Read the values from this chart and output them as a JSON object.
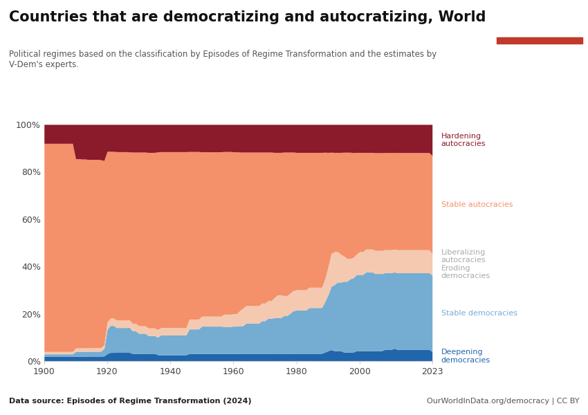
{
  "title": "Countries that are democratizing and autocratizing, World",
  "subtitle": "Political regimes based on the classification by Episodes of Regime Transformation and the estimates by\nV-Dem's experts.",
  "datasource": "Data source: Episodes of Regime Transformation (2024)",
  "website": "OurWorldInData.org/democracy | CC BY",
  "years": [
    1900,
    1901,
    1902,
    1903,
    1904,
    1905,
    1906,
    1907,
    1908,
    1909,
    1910,
    1911,
    1912,
    1913,
    1914,
    1915,
    1916,
    1917,
    1918,
    1919,
    1920,
    1921,
    1922,
    1923,
    1924,
    1925,
    1926,
    1927,
    1928,
    1929,
    1930,
    1931,
    1932,
    1933,
    1934,
    1935,
    1936,
    1937,
    1938,
    1939,
    1940,
    1941,
    1942,
    1943,
    1944,
    1945,
    1946,
    1947,
    1948,
    1949,
    1950,
    1951,
    1952,
    1953,
    1954,
    1955,
    1956,
    1957,
    1958,
    1959,
    1960,
    1961,
    1962,
    1963,
    1964,
    1965,
    1966,
    1967,
    1968,
    1969,
    1970,
    1971,
    1972,
    1973,
    1974,
    1975,
    1976,
    1977,
    1978,
    1979,
    1980,
    1981,
    1982,
    1983,
    1984,
    1985,
    1986,
    1987,
    1988,
    1989,
    1990,
    1991,
    1992,
    1993,
    1994,
    1995,
    1996,
    1997,
    1998,
    1999,
    2000,
    2001,
    2002,
    2003,
    2004,
    2005,
    2006,
    2007,
    2008,
    2009,
    2010,
    2011,
    2012,
    2013,
    2014,
    2015,
    2016,
    2017,
    2018,
    2019,
    2020,
    2021,
    2022,
    2023
  ],
  "pct_deepening": [
    2.0,
    2.0,
    2.0,
    2.0,
    2.0,
    2.0,
    2.0,
    2.0,
    2.0,
    2.0,
    2.0,
    2.0,
    2.0,
    2.0,
    2.0,
    2.0,
    2.0,
    2.0,
    2.0,
    2.0,
    3.0,
    3.5,
    3.5,
    3.5,
    3.5,
    3.5,
    3.5,
    3.5,
    3.0,
    3.0,
    3.0,
    3.0,
    3.0,
    3.0,
    3.0,
    3.0,
    2.5,
    2.5,
    2.5,
    2.5,
    2.5,
    2.5,
    2.5,
    2.5,
    2.5,
    2.5,
    3.0,
    3.0,
    3.0,
    3.0,
    3.0,
    3.0,
    3.0,
    3.0,
    3.0,
    3.0,
    3.0,
    3.0,
    3.0,
    3.0,
    3.0,
    3.0,
    3.0,
    3.0,
    3.0,
    3.0,
    3.0,
    3.0,
    3.0,
    3.0,
    3.0,
    3.0,
    3.0,
    3.0,
    3.0,
    3.0,
    3.0,
    3.0,
    3.0,
    3.0,
    3.0,
    3.0,
    3.0,
    3.0,
    3.0,
    3.0,
    3.0,
    3.0,
    3.0,
    3.5,
    4.0,
    4.5,
    4.0,
    4.0,
    4.0,
    3.5,
    3.5,
    3.5,
    3.5,
    4.0,
    4.0,
    4.0,
    4.0,
    4.0,
    4.0,
    4.0,
    4.0,
    4.0,
    4.5,
    4.5,
    4.5,
    5.0,
    4.5,
    4.5,
    4.5,
    4.5,
    4.5,
    4.5,
    4.5,
    4.5,
    4.5,
    4.5,
    4.5,
    4.0
  ],
  "pct_stable_dem": [
    1.0,
    1.0,
    1.0,
    1.0,
    1.0,
    1.0,
    1.0,
    1.0,
    1.0,
    1.0,
    2.0,
    2.0,
    2.0,
    2.0,
    2.0,
    2.0,
    2.0,
    2.0,
    2.0,
    3.0,
    10.0,
    11.0,
    11.0,
    10.0,
    10.0,
    10.0,
    10.0,
    10.0,
    9.0,
    9.0,
    8.0,
    8.0,
    8.0,
    7.0,
    7.0,
    7.0,
    7.0,
    8.0,
    8.0,
    8.0,
    8.0,
    8.0,
    8.0,
    8.0,
    8.0,
    8.0,
    10.0,
    10.0,
    10.0,
    10.0,
    11.0,
    11.0,
    11.0,
    11.0,
    11.0,
    11.0,
    11.0,
    11.0,
    11.0,
    11.0,
    11.0,
    11.0,
    11.0,
    11.0,
    12.0,
    12.0,
    12.0,
    12.0,
    12.0,
    13.0,
    13.0,
    14.0,
    14.0,
    14.0,
    14.0,
    14.0,
    15.0,
    15.0,
    16.0,
    17.0,
    17.0,
    17.0,
    17.0,
    17.0,
    18.0,
    18.0,
    18.0,
    18.0,
    18.0,
    20.0,
    22.0,
    25.0,
    26.0,
    27.0,
    27.0,
    28.0,
    28.0,
    29.0,
    29.0,
    30.0,
    30.0,
    30.0,
    31.0,
    31.0,
    31.0,
    30.0,
    30.0,
    30.0,
    30.0,
    30.0,
    30.0,
    30.0,
    30.0,
    30.0,
    30.0,
    30.0,
    30.0,
    30.0,
    30.0,
    30.0,
    30.0,
    30.0,
    30.0,
    32.0
  ],
  "pct_liberalizing_eroding": [
    1.0,
    1.0,
    1.0,
    1.0,
    1.0,
    1.0,
    1.0,
    1.0,
    1.0,
    1.0,
    1.5,
    1.5,
    1.5,
    1.5,
    1.5,
    1.5,
    1.5,
    1.5,
    1.5,
    1.5,
    3.0,
    3.0,
    3.0,
    3.0,
    3.0,
    3.0,
    3.0,
    3.0,
    3.0,
    3.0,
    3.0,
    3.0,
    3.0,
    3.0,
    3.0,
    3.0,
    3.0,
    3.0,
    3.0,
    3.0,
    3.0,
    3.0,
    3.0,
    3.0,
    3.0,
    3.0,
    4.0,
    4.0,
    4.0,
    4.0,
    4.0,
    4.0,
    4.0,
    4.0,
    4.0,
    4.0,
    4.0,
    5.0,
    5.0,
    5.0,
    5.0,
    5.0,
    6.0,
    7.0,
    7.0,
    7.0,
    7.0,
    7.0,
    7.0,
    7.0,
    7.0,
    7.0,
    7.0,
    8.0,
    9.0,
    9.0,
    8.0,
    8.0,
    8.0,
    8.0,
    8.0,
    8.0,
    8.0,
    8.0,
    8.0,
    8.0,
    8.0,
    8.0,
    8.0,
    9.0,
    11.0,
    13.0,
    13.0,
    12.0,
    11.0,
    10.0,
    9.0,
    8.0,
    8.0,
    8.0,
    9.0,
    9.0,
    9.0,
    9.0,
    9.0,
    9.0,
    9.0,
    9.0,
    9.0,
    9.0,
    9.0,
    9.0,
    9.0,
    9.0,
    9.0,
    9.0,
    9.0,
    9.0,
    9.0,
    9.0,
    9.0,
    9.0,
    9.0,
    9.0
  ],
  "pct_stable_auto": [
    88.0,
    88.0,
    88.0,
    88.0,
    88.0,
    88.0,
    88.0,
    88.0,
    88.0,
    88.0,
    80.0,
    80.0,
    79.0,
    79.0,
    78.0,
    78.0,
    78.0,
    78.0,
    77.0,
    74.0,
    70.0,
    68.0,
    68.0,
    68.0,
    68.0,
    68.0,
    68.0,
    67.0,
    68.0,
    68.0,
    69.0,
    69.0,
    69.0,
    69.0,
    69.0,
    69.0,
    71.0,
    71.0,
    71.0,
    71.0,
    71.0,
    71.0,
    71.0,
    71.0,
    71.0,
    71.0,
    68.0,
    68.0,
    68.0,
    68.0,
    66.0,
    66.0,
    66.0,
    66.0,
    66.0,
    66.0,
    66.0,
    66.0,
    66.0,
    66.0,
    65.0,
    65.0,
    63.0,
    62.0,
    61.0,
    61.0,
    61.0,
    61.0,
    61.0,
    60.0,
    60.0,
    59.0,
    59.0,
    57.0,
    56.0,
    56.0,
    57.0,
    57.0,
    56.0,
    55.0,
    54.0,
    54.0,
    54.0,
    54.0,
    53.0,
    53.0,
    53.0,
    53.0,
    53.0,
    50.0,
    45.0,
    40.0,
    39.0,
    39.0,
    40.0,
    41.0,
    42.0,
    42.0,
    41.0,
    40.0,
    39.0,
    39.0,
    38.0,
    38.0,
    38.0,
    38.0,
    38.0,
    38.0,
    38.0,
    38.0,
    38.0,
    38.0,
    38.0,
    38.0,
    38.0,
    38.0,
    38.0,
    38.0,
    38.0,
    38.0,
    38.0,
    38.0,
    38.0,
    41.0
  ],
  "pct_hardening": [
    8.0,
    8.0,
    8.0,
    8.0,
    8.0,
    8.0,
    8.0,
    8.0,
    8.0,
    8.0,
    14.5,
    14.5,
    14.5,
    14.5,
    14.5,
    14.5,
    14.5,
    14.5,
    14.5,
    14.5,
    11.0,
    11.0,
    11.0,
    11.0,
    11.0,
    11.0,
    11.0,
    11.0,
    11.0,
    11.0,
    11.0,
    11.0,
    11.0,
    11.0,
    11.0,
    11.0,
    11.0,
    11.0,
    11.0,
    11.0,
    11.0,
    11.0,
    11.0,
    11.0,
    11.0,
    11.0,
    11.0,
    11.0,
    11.0,
    11.0,
    11.0,
    11.0,
    11.0,
    11.0,
    11.0,
    11.0,
    11.0,
    11.0,
    11.0,
    11.0,
    11.0,
    11.0,
    11.0,
    11.0,
    11.0,
    11.0,
    11.0,
    11.0,
    11.0,
    11.0,
    11.0,
    11.0,
    11.0,
    11.0,
    11.0,
    11.0,
    11.0,
    11.0,
    11.0,
    11.0,
    11.0,
    11.0,
    11.0,
    11.0,
    11.0,
    11.0,
    11.0,
    11.0,
    11.0,
    11.0,
    11.0,
    11.0,
    11.0,
    11.0,
    11.0,
    11.0,
    11.0,
    11.0,
    11.0,
    11.0,
    11.0,
    11.0,
    11.0,
    11.0,
    11.0,
    11.0,
    11.0,
    11.0,
    11.0,
    11.0,
    11.0,
    11.0,
    11.0,
    11.0,
    11.0,
    11.0,
    11.0,
    11.0,
    11.0,
    11.0,
    11.0,
    11.0,
    11.0,
    13.0
  ],
  "color_deepening": "#2166ac",
  "color_stable_dem": "#74add1",
  "color_liberalizing_eroding": "#f4c9b0",
  "color_stable_auto": "#f4906a",
  "color_hardening": "#8b1a2a",
  "color_bg": "#ffffff",
  "owid_box_color": "#1a3a5c",
  "owid_red": "#c0392b"
}
